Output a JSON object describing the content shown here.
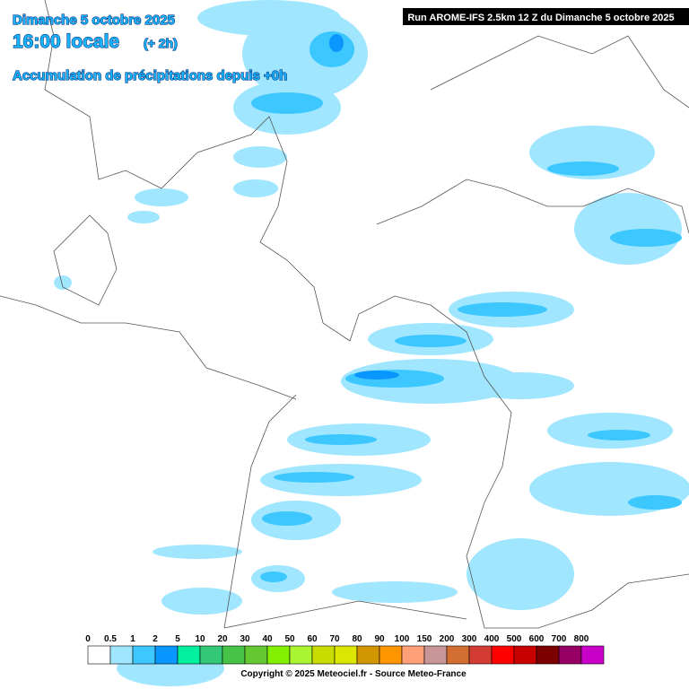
{
  "header": {
    "date": "Dimanche 5 octobre 2025",
    "time": "16:00 locale",
    "offset": "(+ 2h)",
    "product": "Accumulation de précipitations depuis +0h",
    "run": "Run AROME-IFS 2.5km 12 Z du Dimanche 5 octobre 2025"
  },
  "legend": {
    "labels": [
      0,
      0.5,
      1,
      2,
      5,
      10,
      20,
      30,
      40,
      50,
      60,
      70,
      80,
      90,
      100,
      150,
      200,
      300,
      400,
      500,
      600,
      700,
      800
    ],
    "colors": [
      "#ffffff",
      "#a0e6ff",
      "#3cc8ff",
      "#0a96ff",
      "#00f0a0",
      "#32c878",
      "#46c346",
      "#64c832",
      "#82f000",
      "#aaf532",
      "#c8dc00",
      "#dce600",
      "#d29600",
      "#ff9600",
      "#ffa078",
      "#c89696",
      "#d26e32",
      "#d23c32",
      "#ff0000",
      "#c80000",
      "#7d0000",
      "#960064",
      "#c800c8"
    ]
  },
  "footer": {
    "copyright": "Copyright © 2025 Meteociel.fr - Source Meteo-France"
  }
}
